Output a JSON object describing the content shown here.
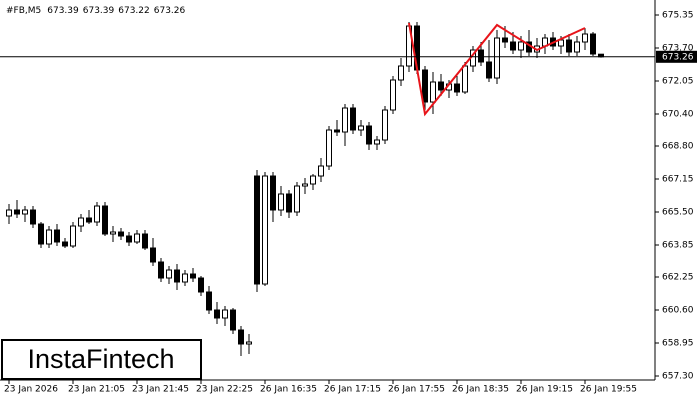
{
  "chart_data": {
    "type": "candlestick",
    "symbol": "#FB,M5",
    "header_ohlc": [
      673.39,
      673.39,
      673.22,
      673.26
    ],
    "logo": "InstaFintech",
    "categories": [
      "23 Jan 2026",
      null,
      null,
      null,
      null,
      null,
      null,
      null,
      "23 Jan 21:05",
      null,
      null,
      null,
      null,
      null,
      null,
      null,
      "23 Jan 21:45",
      null,
      null,
      null,
      null,
      null,
      null,
      null,
      "23 Jan 22:25",
      null,
      null,
      null,
      null,
      null,
      null,
      null,
      "26 Jan 16:35",
      null,
      null,
      null,
      null,
      null,
      null,
      null,
      "26 Jan 17:15",
      null,
      null,
      null,
      null,
      null,
      null,
      null,
      "26 Jan 17:55",
      null,
      null,
      null,
      null,
      null,
      null,
      null,
      "26 Jan 18:35",
      null,
      null,
      null,
      null,
      null,
      null,
      null,
      "26 Jan 19:15",
      null,
      null,
      null,
      null,
      null,
      null,
      null,
      "26 Jan 19:55",
      null,
      null
    ],
    "open": [
      665.3,
      665.6,
      665.4,
      665.6,
      664.9,
      663.9,
      664.6,
      664.0,
      663.8,
      664.8,
      665.2,
      665.0,
      665.8,
      664.4,
      664.5,
      664.3,
      664.0,
      664.4,
      663.7,
      663.0,
      662.2,
      662.6,
      662.0,
      662.4,
      662.2,
      661.5,
      660.6,
      660.2,
      660.6,
      659.6,
      658.9,
      667.3,
      661.9,
      667.3,
      665.6,
      666.4,
      665.5,
      666.8,
      666.9,
      667.3,
      667.8,
      669.6,
      669.5,
      670.7,
      669.6,
      669.8,
      668.9,
      669.1,
      670.6,
      672.1,
      672.8,
      674.8,
      672.6,
      671.0,
      672.0,
      671.6,
      671.9,
      671.5,
      672.8,
      673.6,
      673.0,
      672.2,
      674.2,
      674.0,
      673.6,
      674.0,
      673.5,
      673.8,
      674.2,
      673.8,
      674.1,
      673.5,
      674.0,
      674.4,
      673.39
    ],
    "high": [
      665.9,
      666.1,
      665.8,
      665.8,
      665.0,
      664.8,
      664.9,
      664.2,
      665.0,
      665.4,
      665.6,
      666.0,
      666.0,
      664.8,
      664.7,
      664.5,
      664.6,
      664.6,
      664.2,
      663.2,
      662.8,
      662.9,
      662.6,
      662.7,
      662.3,
      661.8,
      661.0,
      660.8,
      660.7,
      659.8,
      659.4,
      667.6,
      667.5,
      667.5,
      666.8,
      666.6,
      667.0,
      667.2,
      667.4,
      668.2,
      669.8,
      670.1,
      670.9,
      670.9,
      670.1,
      670.0,
      669.3,
      670.8,
      672.3,
      673.2,
      675.0,
      675.0,
      672.8,
      672.5,
      672.4,
      672.1,
      672.3,
      673.0,
      673.8,
      674.0,
      674.1,
      674.6,
      674.8,
      674.5,
      674.3,
      674.6,
      674.2,
      674.4,
      674.5,
      674.3,
      674.4,
      674.3,
      674.7,
      674.5,
      673.39
    ],
    "low": [
      664.9,
      665.2,
      665.0,
      664.7,
      663.7,
      663.7,
      663.8,
      663.7,
      663.7,
      664.5,
      664.9,
      664.8,
      664.3,
      664.0,
      664.1,
      663.8,
      663.9,
      663.6,
      662.8,
      662.0,
      661.9,
      661.6,
      661.8,
      662.0,
      661.3,
      660.4,
      659.9,
      659.8,
      659.4,
      658.3,
      658.4,
      661.5,
      661.8,
      665.0,
      665.3,
      665.2,
      665.3,
      666.4,
      666.6,
      667.0,
      667.6,
      669.3,
      668.8,
      669.4,
      669.3,
      668.6,
      668.6,
      668.9,
      670.4,
      671.8,
      672.5,
      672.4,
      670.6,
      670.4,
      671.3,
      671.2,
      671.3,
      671.4,
      672.5,
      672.8,
      672.0,
      671.9,
      673.7,
      673.4,
      673.2,
      673.3,
      673.2,
      673.4,
      673.6,
      673.4,
      673.3,
      673.3,
      673.6,
      673.3,
      673.22
    ],
    "close": [
      665.6,
      665.4,
      665.6,
      664.9,
      663.9,
      664.6,
      664.0,
      663.8,
      664.8,
      665.2,
      665.0,
      665.8,
      664.4,
      664.5,
      664.3,
      664.0,
      664.4,
      663.7,
      663.0,
      662.2,
      662.6,
      662.0,
      662.4,
      662.2,
      661.5,
      660.6,
      660.2,
      660.6,
      659.6,
      658.9,
      659.0,
      661.9,
      667.3,
      665.6,
      666.4,
      665.5,
      666.8,
      666.9,
      667.3,
      667.8,
      669.6,
      669.5,
      670.7,
      669.6,
      669.8,
      668.9,
      669.1,
      670.6,
      672.1,
      672.8,
      674.8,
      672.6,
      671.0,
      672.0,
      671.6,
      671.9,
      671.5,
      672.8,
      673.6,
      673.0,
      672.2,
      674.2,
      674.0,
      673.6,
      674.0,
      673.5,
      673.8,
      674.2,
      673.8,
      674.1,
      673.5,
      674.0,
      674.4,
      673.4,
      673.26
    ],
    "last_price": 673.26,
    "pattern": {
      "color": "#e8141a",
      "x": [
        50,
        52,
        61,
        66,
        72
      ],
      "values": [
        674.95,
        670.4,
        674.85,
        673.6,
        674.7
      ]
    },
    "ylim": [
      657.1,
      676.1
    ],
    "yticks": [
      675.35,
      {
        "value": 673.7,
        "label": "673.70"
      },
      672.05,
      {
        "value": 670.4,
        "label": "670.40"
      },
      {
        "value": 668.8,
        "label": "668.80"
      },
      667.15,
      {
        "value": 665.5,
        "label": "665.50"
      },
      663.85,
      662.25,
      {
        "value": 660.6,
        "label": "660.60"
      },
      658.95,
      {
        "value": 657.3,
        "label": "657.30"
      }
    ],
    "grid": false
  }
}
